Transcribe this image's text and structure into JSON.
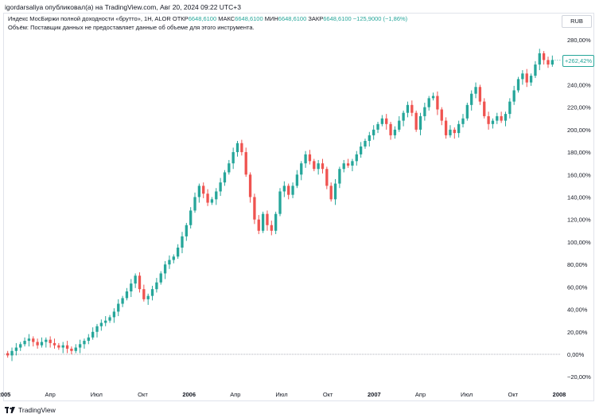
{
  "header": {
    "publisher_line": "igordarsaliya опубликовал(а) на TradingView.com, Авг 20, 2024 09:22 UTC+3"
  },
  "legend": {
    "instrument": "Индекс МосБиржи полной доходности «брутто», 1H, ALOR",
    "open_label": "ОТКР",
    "open_value": "6648,6100",
    "high_label": "МАКС",
    "high_value": "6648,6100",
    "low_label": "МИН",
    "low_value": "6648,6100",
    "close_label": "ЗАКР",
    "close_value": "6648,6100",
    "change": "−125,9000 (−1,86%)",
    "volume_note": "Объём: Поставщик данных не предоставляет данные об объеме для этого инструмента."
  },
  "currency": "RUB",
  "last_value_badge": "+262,42%",
  "footer": {
    "brand": "TradingView"
  },
  "colors": {
    "up": "#26a69a",
    "down": "#ef5350",
    "zero_line": "#9598a1",
    "border": "#e0e3eb"
  },
  "chart_data": {
    "type": "candlestick",
    "y_unit": "%",
    "ylim": [
      -30,
      300
    ],
    "y_ticks": [
      -20,
      0,
      20,
      40,
      60,
      80,
      100,
      120,
      140,
      160,
      180,
      200,
      220,
      240,
      260,
      280
    ],
    "y_tick_labels": [
      "−20,00%",
      "0,00%",
      "20,00%",
      "40,00%",
      "60,00%",
      "80,00%",
      "100,00%",
      "120,00%",
      "140,00%",
      "160,00%",
      "180,00%",
      "200,00%",
      "220,00%",
      "240,00%",
      "260,00%",
      "280,00%"
    ],
    "x_ticks": [
      {
        "label": "2005",
        "week": 0,
        "bold": true
      },
      {
        "label": "Апр",
        "week": 13,
        "bold": false
      },
      {
        "label": "Июл",
        "week": 26,
        "bold": false
      },
      {
        "label": "Окт",
        "week": 39,
        "bold": false
      },
      {
        "label": "2006",
        "week": 52,
        "bold": true
      },
      {
        "label": "Апр",
        "week": 65,
        "bold": false
      },
      {
        "label": "Июл",
        "week": 78,
        "bold": false
      },
      {
        "label": "Окт",
        "week": 91,
        "bold": false
      },
      {
        "label": "2007",
        "week": 104,
        "bold": true
      },
      {
        "label": "Апр",
        "week": 117,
        "bold": false
      },
      {
        "label": "Июл",
        "week": 130,
        "bold": false
      },
      {
        "label": "Окт",
        "week": 143,
        "bold": false
      },
      {
        "label": "2008",
        "week": 156,
        "bold": true
      }
    ],
    "candles": [
      [
        1,
        -1
      ],
      [
        -1,
        3
      ],
      [
        3,
        6
      ],
      [
        6,
        9
      ],
      [
        9,
        12
      ],
      [
        12,
        14
      ],
      [
        14,
        11
      ],
      [
        11,
        8
      ],
      [
        8,
        11
      ],
      [
        11,
        13
      ],
      [
        13,
        10
      ],
      [
        10,
        8
      ],
      [
        8,
        6
      ],
      [
        6,
        8
      ],
      [
        8,
        5
      ],
      [
        5,
        3
      ],
      [
        3,
        6
      ],
      [
        6,
        9
      ],
      [
        9,
        12
      ],
      [
        12,
        15
      ],
      [
        15,
        20
      ],
      [
        20,
        25
      ],
      [
        25,
        28
      ],
      [
        28,
        30
      ],
      [
        30,
        33
      ],
      [
        33,
        38
      ],
      [
        38,
        45
      ],
      [
        45,
        50
      ],
      [
        50,
        56
      ],
      [
        56,
        63
      ],
      [
        63,
        70
      ],
      [
        70,
        58
      ],
      [
        58,
        49
      ],
      [
        49,
        52
      ],
      [
        52,
        58
      ],
      [
        58,
        64
      ],
      [
        64,
        72
      ],
      [
        72,
        80
      ],
      [
        80,
        84
      ],
      [
        84,
        87
      ],
      [
        87,
        95
      ],
      [
        95,
        105
      ],
      [
        105,
        115
      ],
      [
        115,
        128
      ],
      [
        128,
        140
      ],
      [
        140,
        150
      ],
      [
        150,
        143
      ],
      [
        143,
        135
      ],
      [
        135,
        138
      ],
      [
        138,
        145
      ],
      [
        145,
        153
      ],
      [
        153,
        162
      ],
      [
        162,
        170
      ],
      [
        170,
        180
      ],
      [
        180,
        188
      ],
      [
        188,
        180
      ],
      [
        180,
        160
      ],
      [
        160,
        140
      ],
      [
        140,
        120
      ],
      [
        120,
        110
      ],
      [
        110,
        125
      ],
      [
        125,
        115
      ],
      [
        115,
        110
      ],
      [
        110,
        125
      ],
      [
        125,
        145
      ],
      [
        145,
        150
      ],
      [
        150,
        142
      ],
      [
        142,
        150
      ],
      [
        150,
        160
      ],
      [
        160,
        170
      ],
      [
        170,
        178
      ],
      [
        178,
        172
      ],
      [
        172,
        165
      ],
      [
        165,
        170
      ],
      [
        170,
        165
      ],
      [
        165,
        150
      ],
      [
        150,
        138
      ],
      [
        138,
        152
      ],
      [
        152,
        165
      ],
      [
        165,
        170
      ],
      [
        170,
        168
      ],
      [
        168,
        172
      ],
      [
        172,
        178
      ],
      [
        178,
        185
      ],
      [
        185,
        190
      ],
      [
        190,
        195
      ],
      [
        195,
        200
      ],
      [
        200,
        205
      ],
      [
        205,
        210
      ],
      [
        210,
        205
      ],
      [
        205,
        195
      ],
      [
        195,
        200
      ],
      [
        200,
        208
      ],
      [
        208,
        215
      ],
      [
        215,
        222
      ],
      [
        222,
        215
      ],
      [
        215,
        200
      ],
      [
        200,
        212
      ],
      [
        212,
        220
      ],
      [
        220,
        228
      ],
      [
        228,
        230
      ],
      [
        230,
        218
      ],
      [
        218,
        208
      ],
      [
        208,
        195
      ],
      [
        195,
        200
      ],
      [
        200,
        197
      ],
      [
        197,
        205
      ],
      [
        205,
        210
      ],
      [
        210,
        222
      ],
      [
        222,
        232
      ],
      [
        232,
        238
      ],
      [
        238,
        225
      ],
      [
        225,
        212
      ],
      [
        212,
        205
      ],
      [
        205,
        208
      ],
      [
        208,
        212
      ],
      [
        212,
        208
      ],
      [
        208,
        214
      ],
      [
        214,
        225
      ],
      [
        225,
        235
      ],
      [
        235,
        245
      ],
      [
        245,
        250
      ],
      [
        250,
        242
      ],
      [
        242,
        248
      ],
      [
        248,
        258
      ],
      [
        258,
        268
      ],
      [
        268,
        262
      ],
      [
        262,
        258
      ],
      [
        258,
        262
      ]
    ]
  }
}
